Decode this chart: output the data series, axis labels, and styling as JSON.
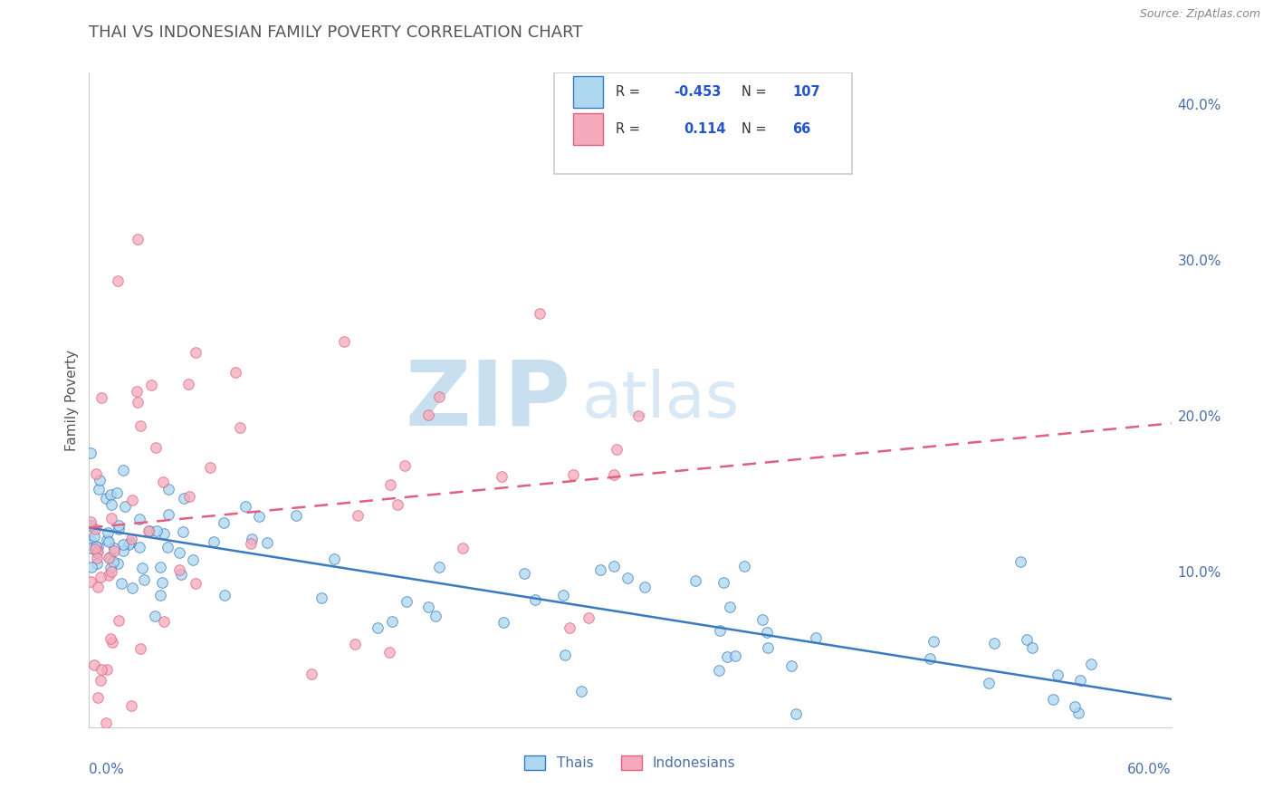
{
  "title": "THAI VS INDONESIAN FAMILY POVERTY CORRELATION CHART",
  "source": "Source: ZipAtlas.com",
  "ylabel": "Family Poverty",
  "xmin": 0.0,
  "xmax": 0.6,
  "ymin": 0.0,
  "ymax": 0.42,
  "yticks": [
    0.1,
    0.2,
    0.3,
    0.4
  ],
  "ytick_labels": [
    "10.0%",
    "20.0%",
    "30.0%",
    "40.0%"
  ],
  "r_thai": -0.453,
  "n_thai": 107,
  "r_indonesian": 0.114,
  "n_indonesian": 66,
  "thai_color": "#add8f0",
  "indonesian_color": "#f4aaba",
  "thai_line_color": "#3a7abf",
  "indonesian_line_color": "#e06080",
  "watermark_zip_color": "#c8dff0",
  "watermark_atlas_color": "#d8e8f4",
  "background_color": "#ffffff",
  "grid_color": "#c8d8e8",
  "title_color": "#555555",
  "legend_r_color": "#2255cc",
  "axis_label_color": "#4a6fa5",
  "source_color": "#888888",
  "thai_trend_start_y": 0.128,
  "thai_trend_end_y": 0.018,
  "indo_trend_start_y": 0.128,
  "indo_trend_end_y": 0.195
}
